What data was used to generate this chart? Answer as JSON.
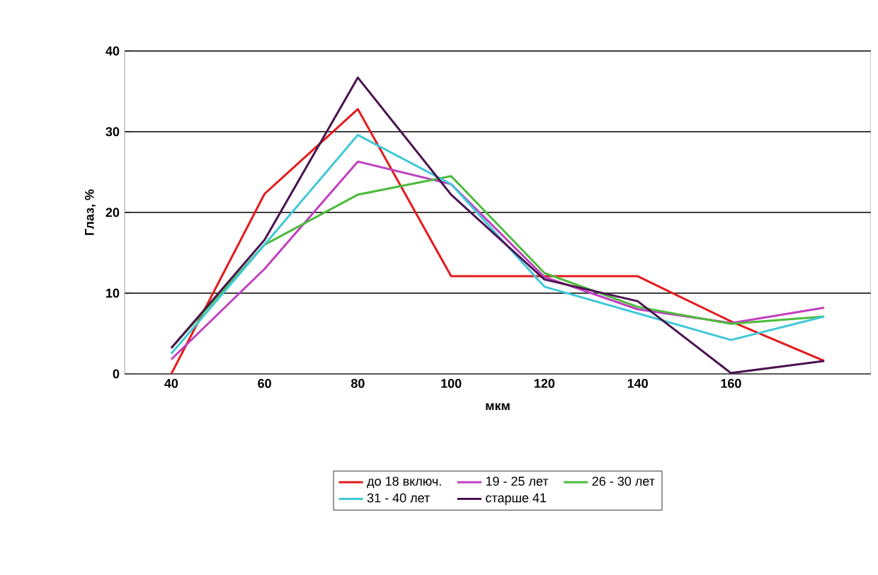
{
  "chart_data": {
    "type": "line",
    "xlabel": "мкм",
    "ylabel": "Глаз, %",
    "categories": [
      "40",
      "60",
      "80",
      "100",
      "120",
      "140",
      "160",
      null
    ],
    "series": [
      {
        "name": "до 18 включ.",
        "color": "#e41a1c",
        "values": [
          0,
          22.3,
          32.8,
          12.1,
          12.1,
          12.1,
          6.5,
          1.6
        ]
      },
      {
        "name": "19 - 25 лет",
        "color": "#c040c0",
        "values": [
          1.8,
          13,
          26.3,
          23.5,
          12,
          8,
          6.3,
          8.2
        ]
      },
      {
        "name": "26 - 30 лет",
        "color": "#4cbb3c",
        "values": [
          3.2,
          16,
          22.2,
          24.5,
          12.5,
          8.3,
          6.2,
          7.1
        ]
      },
      {
        "name": "31 - 40 лет",
        "color": "#40c8d8",
        "values": [
          2.5,
          16,
          29.6,
          23.5,
          10.8,
          7.5,
          4.2,
          7.1
        ]
      },
      {
        "name": "старше 41",
        "color": "#4b1250",
        "values": [
          3.2,
          16.6,
          36.7,
          22.2,
          11.7,
          9,
          0.1,
          1.6
        ]
      }
    ],
    "ylim": [
      0,
      40
    ],
    "yticks": [
      0,
      10,
      20,
      30,
      40
    ],
    "grid": "y",
    "legend": "bottom",
    "marker": "none",
    "line_style": "solid"
  }
}
